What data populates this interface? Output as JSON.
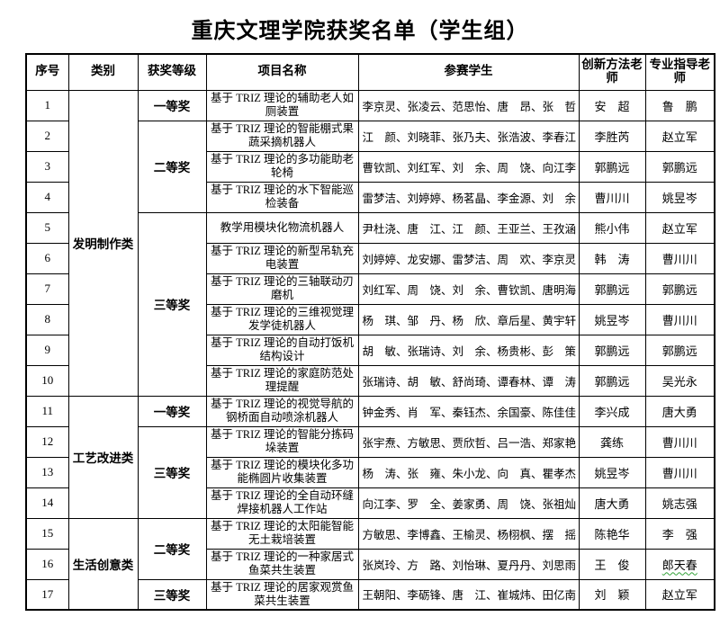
{
  "page": {
    "title": "重庆文理学院获奖名单（学生组）"
  },
  "table": {
    "headers": [
      "序号",
      "类别",
      "获奖等级",
      "项目名称",
      "参赛学生",
      "创新方法老师",
      "专业指导老师"
    ],
    "categories": [
      {
        "label": "发明制作类",
        "start": 1,
        "span": 10
      },
      {
        "label": "工艺改进类",
        "start": 11,
        "span": 4
      },
      {
        "label": "生活创意类",
        "start": 15,
        "span": 3
      }
    ],
    "awards": [
      {
        "label": "一等奖",
        "start": 1,
        "span": 1
      },
      {
        "label": "二等奖",
        "start": 2,
        "span": 3
      },
      {
        "label": "三等奖",
        "start": 5,
        "span": 6
      },
      {
        "label": "一等奖",
        "start": 11,
        "span": 1
      },
      {
        "label": "三等奖",
        "start": 12,
        "span": 3
      },
      {
        "label": "二等奖",
        "start": 15,
        "span": 2
      },
      {
        "label": "三等奖",
        "start": 17,
        "span": 1
      }
    ],
    "rows": [
      {
        "no": "1",
        "project": "基于 TRIZ 理论的辅助老人如厕装置",
        "students": "李京灵、张凌云、范思怡、唐　昂、张　哲",
        "method_teacher": "安　超",
        "advisor": "鲁　鹏"
      },
      {
        "no": "2",
        "project": "基于 TRIZ 理论的智能棚式果蔬采摘机器人",
        "students": "江　颜、刘晓菲、张乃夫、张浩波、李春江",
        "method_teacher": "李胜芮",
        "advisor": "赵立军"
      },
      {
        "no": "3",
        "project": "基于 TRIZ 理论的多功能助老轮椅",
        "students": "曹钦凯、刘红军、刘　余、周　饶、向江李",
        "method_teacher": "郭鹏远",
        "advisor": "郭鹏远"
      },
      {
        "no": "4",
        "project": "基于 TRIZ 理论的水下智能巡检装备",
        "students": "雷梦洁、刘婷婷、杨茗晶、李金源、刘　余",
        "method_teacher": "曹川川",
        "advisor": "姚昱岑"
      },
      {
        "no": "5",
        "project": "教学用模块化物流机器人",
        "students": "尹杜浇、唐　江、江　颜、王亚兰、王孜涵",
        "method_teacher": "熊小伟",
        "advisor": "赵立军"
      },
      {
        "no": "6",
        "project": "基于 TRIZ 理论的新型吊轨充电装置",
        "students": "刘婷婷、龙安娜、雷梦洁、周　欢、李京灵",
        "method_teacher": "韩　涛",
        "advisor": "曹川川"
      },
      {
        "no": "7",
        "project": "基于 TRIZ 理论的三轴联动刃磨机",
        "students": "刘红军、周　饶、刘　余、曹钦凯、唐明海",
        "method_teacher": "郭鹏远",
        "advisor": "郭鹏远"
      },
      {
        "no": "8",
        "project": "基于 TRIZ 理论的三维视觉理发学徒机器人",
        "students": "杨　琪、邹　丹、杨　欣、章后星、黄宇轩",
        "method_teacher": "姚昱岑",
        "advisor": "曹川川"
      },
      {
        "no": "9",
        "project": "基于 TRIZ 理论的自动打饭机结构设计",
        "students": "胡　敏、张瑞诗、刘　余、杨贵彬、彭　策",
        "method_teacher": "郭鹏远",
        "advisor": "郭鹏远"
      },
      {
        "no": "10",
        "project": "基于 TRIZ 理论的家庭防范处理提醒",
        "students": "张瑞诗、胡　敏、舒尚琦、谭春林、谭　涛",
        "method_teacher": "郭鹏远",
        "advisor": "吴光永"
      },
      {
        "no": "11",
        "project": "基于 TRIZ 理论的视觉导航的钢桥面自动喷涂机器人",
        "students": "钟金秀、肖　军、秦钰杰、余国豪、陈佳佳",
        "method_teacher": "李兴成",
        "advisor": "唐大勇"
      },
      {
        "no": "12",
        "project": "基于 TRIZ 理论的智能分拣码垛装置",
        "students": "张宇焘、方敏思、贾欣哲、吕一浩、郑家艳",
        "method_teacher": "龚练",
        "advisor": "曹川川"
      },
      {
        "no": "13",
        "project": "基于 TRIZ 理论的模块化多功能椭圆片收集装置",
        "students": "杨　涛、张　雍、朱小龙、向　真、瞿孝杰",
        "method_teacher": "姚昱岑",
        "advisor": "曹川川"
      },
      {
        "no": "14",
        "project": "基于 TRIZ 理论的全自动环缝焊接机器人工作站",
        "students": "向江李、罗　全、姜家勇、周　饶、张祖灿",
        "method_teacher": "唐大勇",
        "advisor": "姚志强"
      },
      {
        "no": "15",
        "project": "基于 TRIZ 理论的太阳能智能无土栽培装置",
        "students": "方敏思、李博鑫、王榆灵、杨栩枫、摆　摇",
        "method_teacher": "陈艳华",
        "advisor": "李　强"
      },
      {
        "no": "16",
        "project": "基于 TRIZ 理论的一种家居式鱼菜共生装置",
        "students": "张岚玲、方　路、刘怡琳、夏丹丹、刘思雨",
        "method_teacher": "王　俊",
        "advisor": "郎天春",
        "advisor_wavy": true
      },
      {
        "no": "17",
        "project": "基于 TRIZ 理论的居家观赏鱼菜共生装置",
        "students": "王朝阳、李砺锋、唐　江、崔城炜、田亿南",
        "method_teacher": "刘　颖",
        "advisor": "赵立军"
      }
    ]
  }
}
